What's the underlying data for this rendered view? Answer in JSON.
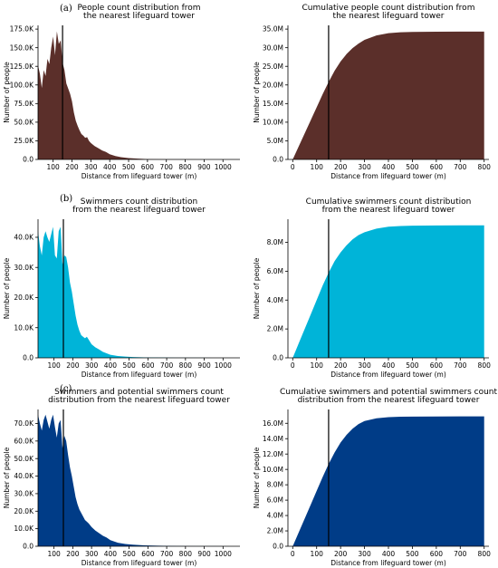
{
  "panel_labels": [
    "(a)",
    "(b)",
    "(c)"
  ],
  "colors": {
    "brown": "#5b2f2a",
    "cyan": "#00b4d8",
    "navy": "#003c87",
    "marker": "#000000"
  },
  "chart_data": [
    {
      "type": "area",
      "title_lines": [
        "People count distribution from",
        "the nearest lifeguard tower"
      ],
      "xlabel": "Distance from lifeguard tower (m)",
      "ylabel": "Number of people",
      "color": "brown",
      "xlim": [
        20,
        1090
      ],
      "ylim": [
        0,
        180000
      ],
      "xticks": [
        100,
        200,
        300,
        400,
        500,
        600,
        700,
        800,
        900,
        1000
      ],
      "xtick_labels": [
        "100",
        "200",
        "300",
        "400",
        "500",
        "600",
        "700",
        "800",
        "900",
        "1000"
      ],
      "yticks": [
        0,
        25000,
        50000,
        75000,
        100000,
        125000,
        150000,
        175000
      ],
      "ytick_labels": [
        "0.0",
        "25.0K",
        "50.0K",
        "75.0K",
        "100.0K",
        "125.0K",
        "150.0K",
        "175.0K"
      ],
      "marker_x": 150,
      "x": [
        20,
        30,
        40,
        50,
        60,
        70,
        80,
        90,
        100,
        110,
        120,
        130,
        140,
        150,
        160,
        170,
        180,
        190,
        200,
        210,
        220,
        230,
        240,
        250,
        260,
        270,
        280,
        290,
        300,
        320,
        340,
        360,
        380,
        400,
        430,
        460,
        500,
        550,
        600,
        700,
        800,
        900,
        1000,
        1090
      ],
      "y": [
        126000,
        115000,
        96000,
        120000,
        112000,
        135000,
        128000,
        150000,
        165000,
        140000,
        172000,
        155000,
        160000,
        130000,
        120000,
        102000,
        95000,
        88000,
        78000,
        63000,
        52000,
        45000,
        39000,
        34000,
        32000,
        29000,
        30000,
        25000,
        22000,
        18000,
        15000,
        12000,
        10000,
        7000,
        4500,
        3000,
        1800,
        1000,
        500,
        200,
        100,
        50,
        20,
        0
      ]
    },
    {
      "type": "area",
      "cumulative": true,
      "title_lines": [
        "Cumulative people count distribution from",
        "the nearest lifeguard tower"
      ],
      "xlabel": "Distance from lifeguard tower (m)",
      "ylabel": "Number of people",
      "color": "brown",
      "xlim": [
        -20,
        820
      ],
      "ylim": [
        0,
        36000000
      ],
      "xticks": [
        0,
        100,
        200,
        300,
        400,
        500,
        600,
        700,
        800
      ],
      "xtick_labels": [
        "0",
        "100",
        "200",
        "300",
        "400",
        "500",
        "600",
        "700",
        "800"
      ],
      "yticks": [
        0,
        5000000,
        10000000,
        15000000,
        20000000,
        25000000,
        30000000,
        35000000
      ],
      "ytick_labels": [
        "0.0",
        "5.0M",
        "10.0M",
        "15.0M",
        "20.0M",
        "25.0M",
        "30.0M",
        "35.0M"
      ],
      "marker_x": 150,
      "x": [
        0,
        25,
        50,
        75,
        100,
        125,
        150,
        175,
        200,
        225,
        250,
        275,
        300,
        350,
        400,
        450,
        500,
        600,
        700,
        800
      ],
      "y": [
        0,
        3500000,
        7000000,
        10500000,
        14000000,
        17500000,
        20800000,
        23800000,
        26300000,
        28300000,
        29900000,
        31100000,
        32100000,
        33300000,
        33900000,
        34150000,
        34250000,
        34300000,
        34320000,
        34330000
      ]
    },
    {
      "type": "area",
      "title_lines": [
        "Swimmers count distribution",
        "from the nearest lifeguard tower"
      ],
      "xlabel": "Distance from lifeguard tower (m)",
      "ylabel": "Number of people",
      "color": "cyan",
      "xlim": [
        15,
        1090
      ],
      "ylim": [
        0,
        46000
      ],
      "xticks": [
        100,
        200,
        300,
        400,
        500,
        600,
        700,
        800,
        900,
        1000
      ],
      "xtick_labels": [
        "100",
        "200",
        "300",
        "400",
        "500",
        "600",
        "700",
        "800",
        "900",
        "1000"
      ],
      "yticks": [
        0,
        10000,
        20000,
        30000,
        40000
      ],
      "ytick_labels": [
        "0.0",
        "10.0K",
        "20.0K",
        "30.0K",
        "40.0K"
      ],
      "marker_x": 150,
      "x": [
        15,
        25,
        35,
        45,
        55,
        65,
        75,
        85,
        95,
        105,
        115,
        125,
        135,
        145,
        155,
        165,
        175,
        185,
        195,
        205,
        215,
        225,
        235,
        245,
        255,
        265,
        275,
        285,
        300,
        320,
        340,
        360,
        380,
        400,
        440,
        480,
        520,
        580,
        650,
        750,
        850,
        950,
        1050,
        1090
      ],
      "y": [
        42000,
        37000,
        34000,
        40000,
        42000,
        40000,
        38500,
        41000,
        43500,
        34000,
        33000,
        42000,
        43500,
        31000,
        34000,
        33500,
        30000,
        25000,
        22000,
        18000,
        14000,
        11000,
        9000,
        7500,
        7000,
        6500,
        7000,
        6000,
        4500,
        3500,
        2800,
        2000,
        1500,
        1000,
        600,
        400,
        250,
        150,
        100,
        50,
        20,
        10,
        5,
        0
      ]
    },
    {
      "type": "area",
      "cumulative": true,
      "title_lines": [
        "Cumulative swimmers count distribution",
        "from the nearest lifeguard tower"
      ],
      "xlabel": "Distance from lifeguard tower (m)",
      "ylabel": "Number of people",
      "color": "cyan",
      "xlim": [
        -20,
        820
      ],
      "ylim": [
        0,
        9600000
      ],
      "xticks": [
        0,
        100,
        200,
        300,
        400,
        500,
        600,
        700,
        800
      ],
      "xtick_labels": [
        "0",
        "100",
        "200",
        "300",
        "400",
        "500",
        "600",
        "700",
        "800"
      ],
      "yticks": [
        0,
        2000000,
        4000000,
        6000000,
        8000000
      ],
      "ytick_labels": [
        "0.0",
        "2.0M",
        "4.0M",
        "6.0M",
        "8.0M"
      ],
      "marker_x": 150,
      "x": [
        0,
        25,
        50,
        75,
        100,
        125,
        150,
        175,
        200,
        225,
        250,
        275,
        300,
        350,
        400,
        450,
        500,
        600,
        700,
        800
      ],
      "y": [
        0,
        1000000,
        2000000,
        3000000,
        4000000,
        5000000,
        5900000,
        6700000,
        7300000,
        7800000,
        8200000,
        8500000,
        8700000,
        8950000,
        9080000,
        9130000,
        9150000,
        9170000,
        9175000,
        9180000
      ]
    },
    {
      "type": "area",
      "title_lines": [
        "Swimmers and potential swimmers count",
        "distribution from the nearest lifeguard tower"
      ],
      "xlabel": "Distance from lifeguard tower (m)",
      "ylabel": "Number of people",
      "color": "navy",
      "xlim": [
        15,
        1090
      ],
      "ylim": [
        0,
        78000
      ],
      "xticks": [
        100,
        200,
        300,
        400,
        500,
        600,
        700,
        800,
        900,
        1000
      ],
      "xtick_labels": [
        "100",
        "200",
        "300",
        "400",
        "500",
        "600",
        "700",
        "800",
        "900",
        "1000"
      ],
      "yticks": [
        0,
        10000,
        20000,
        30000,
        40000,
        50000,
        60000,
        70000
      ],
      "ytick_labels": [
        "0.0",
        "10.0K",
        "20.0K",
        "30.0K",
        "40.0K",
        "50.0K",
        "60.0K",
        "70.0K"
      ],
      "marker_x": 150,
      "x": [
        15,
        25,
        35,
        45,
        55,
        65,
        75,
        85,
        95,
        105,
        115,
        125,
        135,
        145,
        155,
        165,
        175,
        185,
        195,
        205,
        215,
        225,
        235,
        245,
        255,
        265,
        275,
        285,
        300,
        320,
        340,
        360,
        380,
        400,
        440,
        480,
        520,
        580,
        650,
        750,
        850,
        950,
        1050,
        1090
      ],
      "y": [
        75000,
        70000,
        66000,
        72000,
        75000,
        71000,
        67000,
        72000,
        75000,
        68000,
        62000,
        70000,
        72000,
        56000,
        63000,
        60000,
        52000,
        45000,
        40000,
        34000,
        28000,
        24000,
        21000,
        19000,
        17000,
        15000,
        14000,
        13000,
        11000,
        9000,
        7500,
        6000,
        5000,
        3500,
        2000,
        1300,
        900,
        500,
        300,
        150,
        80,
        40,
        20,
        0
      ]
    },
    {
      "type": "area",
      "cumulative": true,
      "title_lines": [
        "Cumulative swimmers and potential swimmers count",
        "distribution from the nearest lifeguard tower"
      ],
      "xlabel": "Distance from lifeguard tower (m)",
      "ylabel": "Number of people",
      "color": "navy",
      "xlim": [
        -20,
        820
      ],
      "ylim": [
        0,
        17800000
      ],
      "xticks": [
        0,
        100,
        200,
        300,
        400,
        500,
        600,
        700,
        800
      ],
      "xtick_labels": [
        "0",
        "100",
        "200",
        "300",
        "400",
        "500",
        "600",
        "700",
        "800"
      ],
      "yticks": [
        0,
        2000000,
        4000000,
        6000000,
        8000000,
        10000000,
        12000000,
        14000000,
        16000000
      ],
      "ytick_labels": [
        "0.0",
        "2.0M",
        "4.0M",
        "6.0M",
        "8.0M",
        "10.0M",
        "12.0M",
        "14.0M",
        "16.0M"
      ],
      "marker_x": 150,
      "x": [
        0,
        25,
        50,
        75,
        100,
        125,
        150,
        175,
        200,
        225,
        250,
        275,
        300,
        350,
        400,
        450,
        500,
        600,
        700,
        800
      ],
      "y": [
        0,
        1800000,
        3600000,
        5400000,
        7200000,
        9000000,
        10700000,
        12200000,
        13500000,
        14500000,
        15300000,
        15900000,
        16300000,
        16650000,
        16800000,
        16850000,
        16870000,
        16890000,
        16900000,
        16900000
      ]
    }
  ]
}
